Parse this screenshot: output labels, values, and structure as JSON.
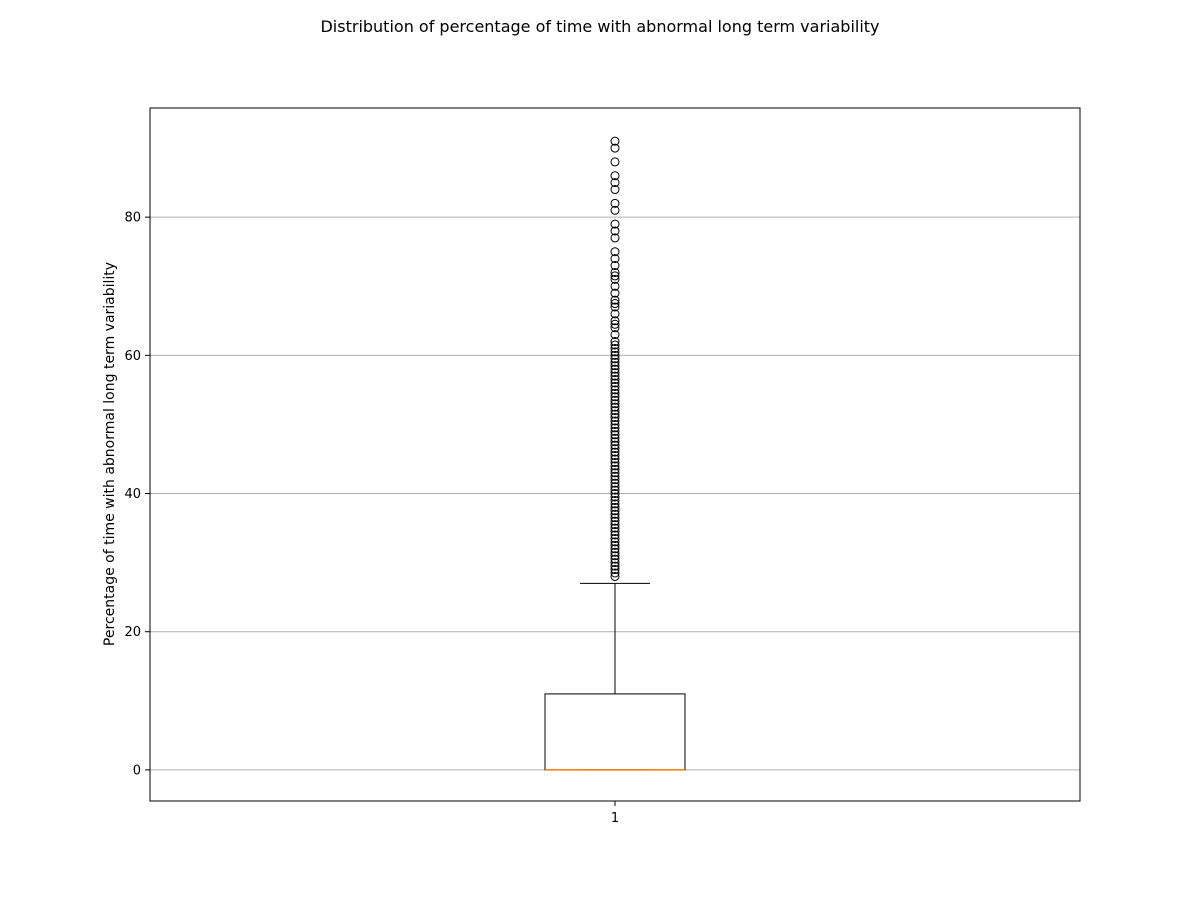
{
  "chart_data": {
    "type": "box",
    "title": "Distribution of percentage of time with abnormal long term variability",
    "xlabel": "",
    "ylabel": "Percentage of time with abnormal long term variability",
    "categories": [
      "1"
    ],
    "ylim": [
      -4.5,
      95.8
    ],
    "yticks": [
      0,
      20,
      40,
      60,
      80
    ],
    "grid": "horizontal",
    "box": {
      "min_whisker": 0,
      "q1": 0,
      "median": 0,
      "q3": 11,
      "max_whisker": 27,
      "outliers": [
        28,
        28.5,
        29,
        29.5,
        30,
        30.5,
        31,
        31.5,
        32,
        32.5,
        33,
        33.5,
        34,
        34.5,
        35,
        35.5,
        36,
        36.5,
        37,
        37.5,
        38,
        38.5,
        39,
        39.5,
        40,
        40.5,
        41,
        41.5,
        42,
        42.5,
        43,
        43.5,
        44,
        44.5,
        45,
        45.5,
        46,
        46.5,
        47,
        47.5,
        48,
        48.5,
        49,
        49.5,
        50,
        50.5,
        51,
        51.5,
        52,
        52.5,
        53,
        53.5,
        54,
        54.5,
        55,
        55.5,
        56,
        56.5,
        57,
        57.5,
        58,
        58.5,
        59,
        59.5,
        60,
        60.5,
        61,
        61.5,
        62,
        63,
        64,
        64.5,
        65,
        66,
        67,
        67.5,
        68,
        69,
        70,
        71,
        71.5,
        72,
        73,
        74,
        75,
        77,
        78,
        79,
        81,
        82,
        84,
        85,
        86,
        88,
        90,
        91
      ]
    },
    "colors": {
      "box": "#000000",
      "median": "#ff7f0e",
      "grid": "#b0b0b0"
    }
  }
}
